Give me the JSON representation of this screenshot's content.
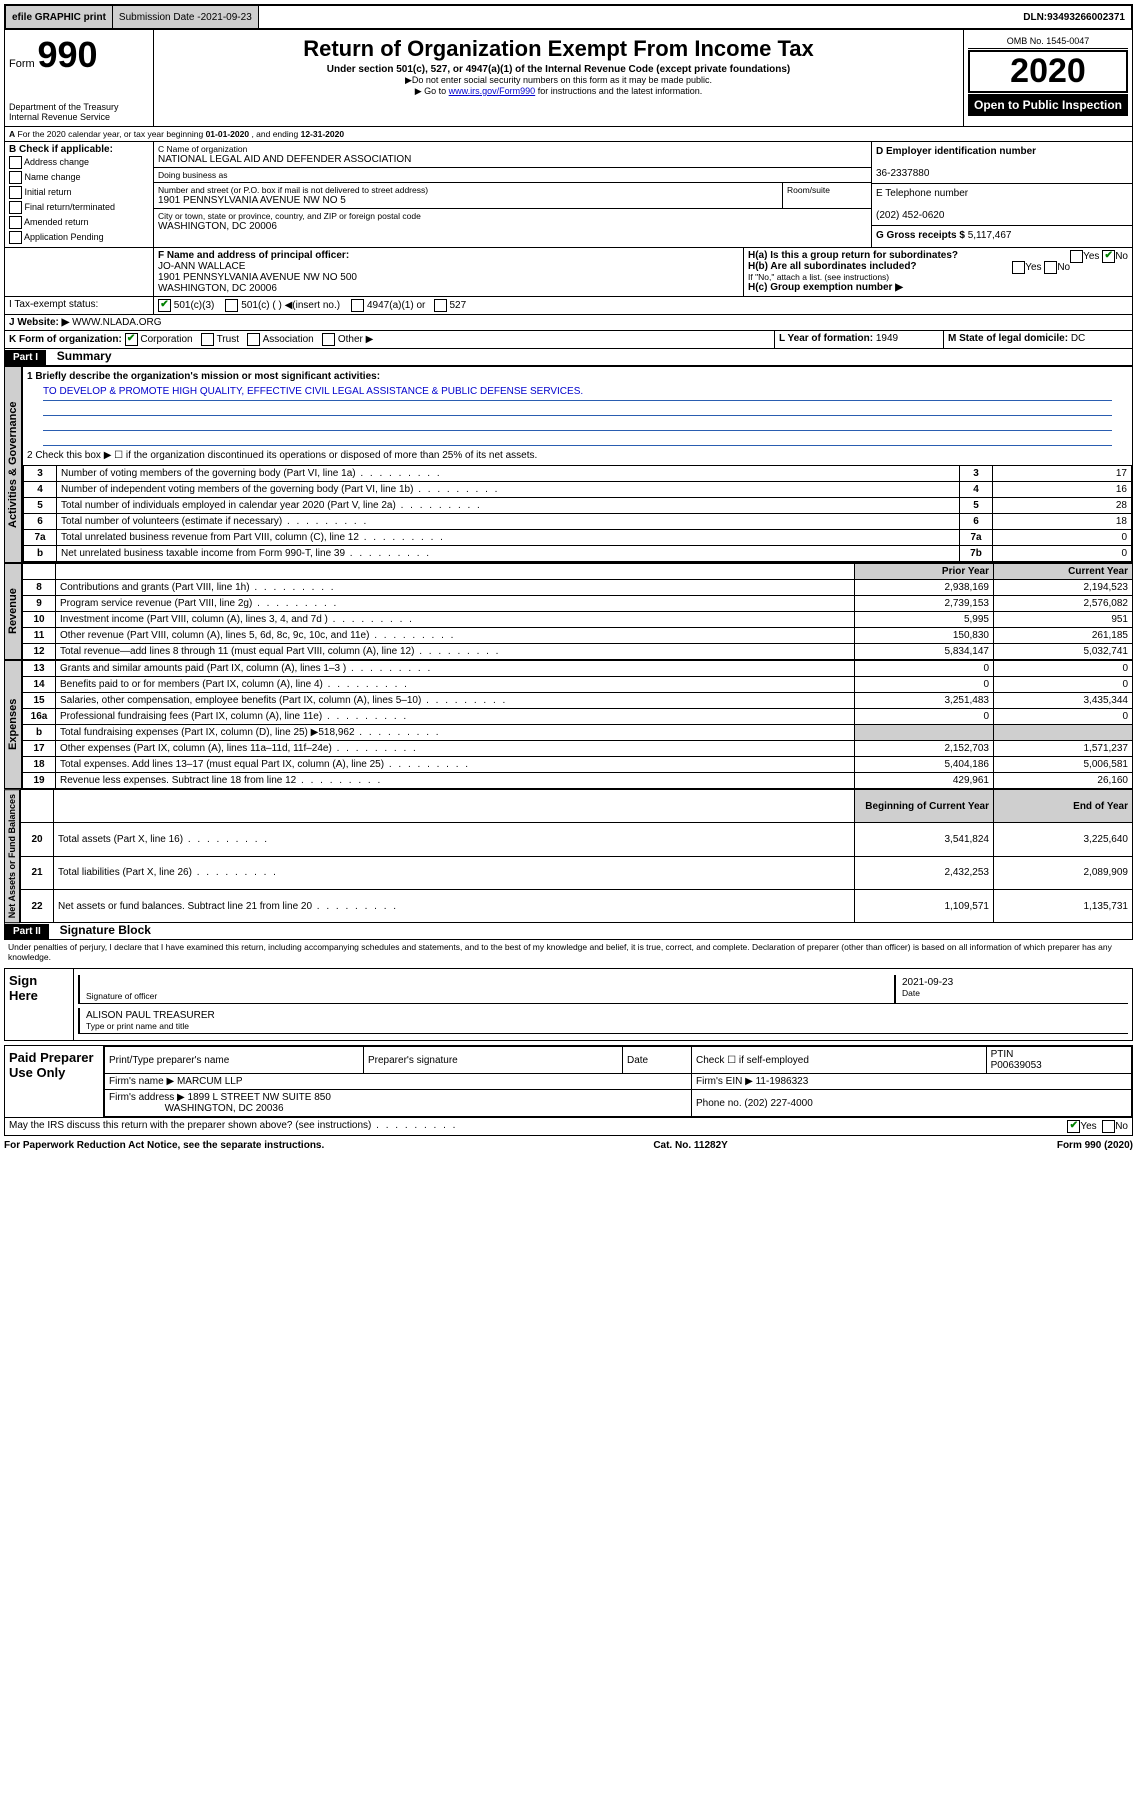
{
  "topbar": {
    "efile": "efile GRAPHIC print",
    "subdate_lbl": "Submission Date - ",
    "subdate": "2021-09-23",
    "dln_lbl": "DLN: ",
    "dln": "93493266002371"
  },
  "header": {
    "form_word": "Form",
    "form_no": "990",
    "dept": "Department of the Treasury\nInternal Revenue Service",
    "title": "Return of Organization Exempt From Income Tax",
    "sub": "Under section 501(c), 527, or 4947(a)(1) of the Internal Revenue Code (except private foundations)",
    "sub2a": "Do not enter social security numbers on this form as it may be made public.",
    "sub2b_pre": "Go to ",
    "sub2b_link": "www.irs.gov/Form990",
    "sub2b_post": " for instructions and the latest information.",
    "omb": "OMB No. 1545-0047",
    "year": "2020",
    "open": "Open to Public Inspection"
  },
  "period": {
    "line": "For the 2020 calendar year, or tax year beginning ",
    "begin": "01-01-2020",
    "mid": ", and ending ",
    "end": "12-31-2020"
  },
  "boxB": {
    "title": "B Check if applicable:",
    "opts": [
      "Address change",
      "Name change",
      "Initial return",
      "Final return/terminated",
      "Amended return",
      "Application Pending"
    ]
  },
  "boxC": {
    "name_lbl": "C Name of organization",
    "name": "NATIONAL LEGAL AID AND DEFENDER ASSOCIATION",
    "dba_lbl": "Doing business as",
    "dba": "",
    "addr_lbl": "Number and street (or P.O. box if mail is not delivered to street address)",
    "room_lbl": "Room/suite",
    "addr": "1901 PENNSYLVANIA AVENUE NW NO 5",
    "city_lbl": "City or town, state or province, country, and ZIP or foreign postal code",
    "city": "WASHINGTON, DC  20006"
  },
  "boxD": {
    "lbl": "D Employer identification number",
    "val": "36-2337880"
  },
  "boxE": {
    "lbl": "E Telephone number",
    "val": "(202) 452-0620"
  },
  "boxG": {
    "lbl": "G Gross receipts $ ",
    "val": "5,117,467"
  },
  "boxF": {
    "lbl": "F  Name and address of principal officer:",
    "name": "JO-ANN WALLACE",
    "addr1": "1901 PENNSYLVANIA AVENUE NW NO 500",
    "addr2": "WASHINGTON, DC  20006"
  },
  "boxH": {
    "a": "H(a)  Is this a group return for subordinates?",
    "b": "H(b)  Are all subordinates included?",
    "bnote": "If \"No,\" attach a list. (see instructions)",
    "c": "H(c)  Group exemption number ▶"
  },
  "boxI": {
    "lbl": "I  Tax-exempt status:",
    "o1": "501(c)(3)",
    "o2": "501(c) (   ) ◀(insert no.)",
    "o3": "4947(a)(1) or",
    "o4": "527"
  },
  "boxJ": {
    "lbl": "J   Website: ▶  ",
    "val": "WWW.NLADA.ORG"
  },
  "boxK": {
    "lbl": "K Form of organization:",
    "o1": "Corporation",
    "o2": "Trust",
    "o3": "Association",
    "o4": "Other ▶"
  },
  "boxL": {
    "lbl": "L Year of formation: ",
    "val": "1949"
  },
  "boxM": {
    "lbl": "M State of legal domicile: ",
    "val": "DC"
  },
  "part1": {
    "bar": "Part I",
    "title": "Summary"
  },
  "summary": {
    "q1": "1   Briefly describe the organization's mission or most significant activities:",
    "mission": "TO DEVELOP & PROMOTE HIGH QUALITY, EFFECTIVE CIVIL LEGAL ASSISTANCE & PUBLIC DEFENSE SERVICES.",
    "q2": "2   Check this box ▶ ☐  if the organization discontinued its operations or disposed of more than 25% of its net assets.",
    "rows_gov": [
      {
        "n": "3",
        "t": "Number of voting members of the governing body (Part VI, line 1a)",
        "b": "3",
        "v": "17"
      },
      {
        "n": "4",
        "t": "Number of independent voting members of the governing body (Part VI, line 1b)",
        "b": "4",
        "v": "16"
      },
      {
        "n": "5",
        "t": "Total number of individuals employed in calendar year 2020 (Part V, line 2a)",
        "b": "5",
        "v": "28"
      },
      {
        "n": "6",
        "t": "Total number of volunteers (estimate if necessary)",
        "b": "6",
        "v": "18"
      },
      {
        "n": "7a",
        "t": "Total unrelated business revenue from Part VIII, column (C), line 12",
        "b": "7a",
        "v": "0"
      },
      {
        "n": "b",
        "t": "Net unrelated business taxable income from Form 990-T, line 39",
        "b": "7b",
        "v": "0"
      }
    ],
    "hdr_prior": "Prior Year",
    "hdr_curr": "Current Year",
    "rows_rev": [
      {
        "n": "8",
        "t": "Contributions and grants (Part VIII, line 1h)",
        "p": "2,938,169",
        "c": "2,194,523"
      },
      {
        "n": "9",
        "t": "Program service revenue (Part VIII, line 2g)",
        "p": "2,739,153",
        "c": "2,576,082"
      },
      {
        "n": "10",
        "t": "Investment income (Part VIII, column (A), lines 3, 4, and 7d )",
        "p": "5,995",
        "c": "951"
      },
      {
        "n": "11",
        "t": "Other revenue (Part VIII, column (A), lines 5, 6d, 8c, 9c, 10c, and 11e)",
        "p": "150,830",
        "c": "261,185"
      },
      {
        "n": "12",
        "t": "Total revenue—add lines 8 through 11 (must equal Part VIII, column (A), line 12)",
        "p": "5,834,147",
        "c": "5,032,741"
      }
    ],
    "rows_exp": [
      {
        "n": "13",
        "t": "Grants and similar amounts paid (Part IX, column (A), lines 1–3 )",
        "p": "0",
        "c": "0"
      },
      {
        "n": "14",
        "t": "Benefits paid to or for members (Part IX, column (A), line 4)",
        "p": "0",
        "c": "0"
      },
      {
        "n": "15",
        "t": "Salaries, other compensation, employee benefits (Part IX, column (A), lines 5–10)",
        "p": "3,251,483",
        "c": "3,435,344"
      },
      {
        "n": "16a",
        "t": "Professional fundraising fees (Part IX, column (A), line 11e)",
        "p": "0",
        "c": "0"
      },
      {
        "n": "b",
        "t": "Total fundraising expenses (Part IX, column (D), line 25) ▶518,962",
        "p": "",
        "c": ""
      },
      {
        "n": "17",
        "t": "Other expenses (Part IX, column (A), lines 11a–11d, 11f–24e)",
        "p": "2,152,703",
        "c": "1,571,237"
      },
      {
        "n": "18",
        "t": "Total expenses. Add lines 13–17 (must equal Part IX, column (A), line 25)",
        "p": "5,404,186",
        "c": "5,006,581"
      },
      {
        "n": "19",
        "t": "Revenue less expenses. Subtract line 18 from line 12",
        "p": "429,961",
        "c": "26,160"
      }
    ],
    "hdr_begin": "Beginning of Current Year",
    "hdr_end": "End of Year",
    "rows_na": [
      {
        "n": "20",
        "t": "Total assets (Part X, line 16)",
        "p": "3,541,824",
        "c": "3,225,640"
      },
      {
        "n": "21",
        "t": "Total liabilities (Part X, line 26)",
        "p": "2,432,253",
        "c": "2,089,909"
      },
      {
        "n": "22",
        "t": "Net assets or fund balances. Subtract line 21 from line 20",
        "p": "1,109,571",
        "c": "1,135,731"
      }
    ]
  },
  "tabs": {
    "gov": "Activities & Governance",
    "rev": "Revenue",
    "exp": "Expenses",
    "na": "Net Assets or Fund Balances"
  },
  "part2": {
    "bar": "Part II",
    "title": "Signature Block"
  },
  "sig": {
    "decl": "Under penalties of perjury, I declare that I have examined this return, including accompanying schedules and statements, and to the best of my knowledge and belief, it is true, correct, and complete. Declaration of preparer (other than officer) is based on all information of which preparer has any knowledge.",
    "sign_here": "Sign Here",
    "sig_officer": "Signature of officer",
    "date_lbl": "Date",
    "date": "2021-09-23",
    "officer_name": "ALISON PAUL  TREASURER",
    "type_name": "Type or print name and title",
    "paid": "Paid Preparer Use Only",
    "prep_name_lbl": "Print/Type preparer's name",
    "prep_sig_lbl": "Preparer's signature",
    "check_self": "Check ☐ if self-employed",
    "ptin_lbl": "PTIN",
    "ptin": "P00639053",
    "firm_name_lbl": "Firm's name      ▶",
    "firm_name": "MARCUM LLP",
    "firm_ein_lbl": "Firm's EIN ▶",
    "firm_ein": "11-1986323",
    "firm_addr_lbl": "Firm's address ▶",
    "firm_addr": "1899 L STREET NW SUITE 850",
    "firm_city": "WASHINGTON, DC  20036",
    "phone_lbl": "Phone no. ",
    "phone": "(202) 227-4000",
    "discuss": "May the IRS discuss this return with the preparer shown above? (see instructions)"
  },
  "footer": {
    "left": "For Paperwork Reduction Act Notice, see the separate instructions.",
    "mid": "Cat. No. 11282Y",
    "right": "Form 990 (2020)"
  }
}
